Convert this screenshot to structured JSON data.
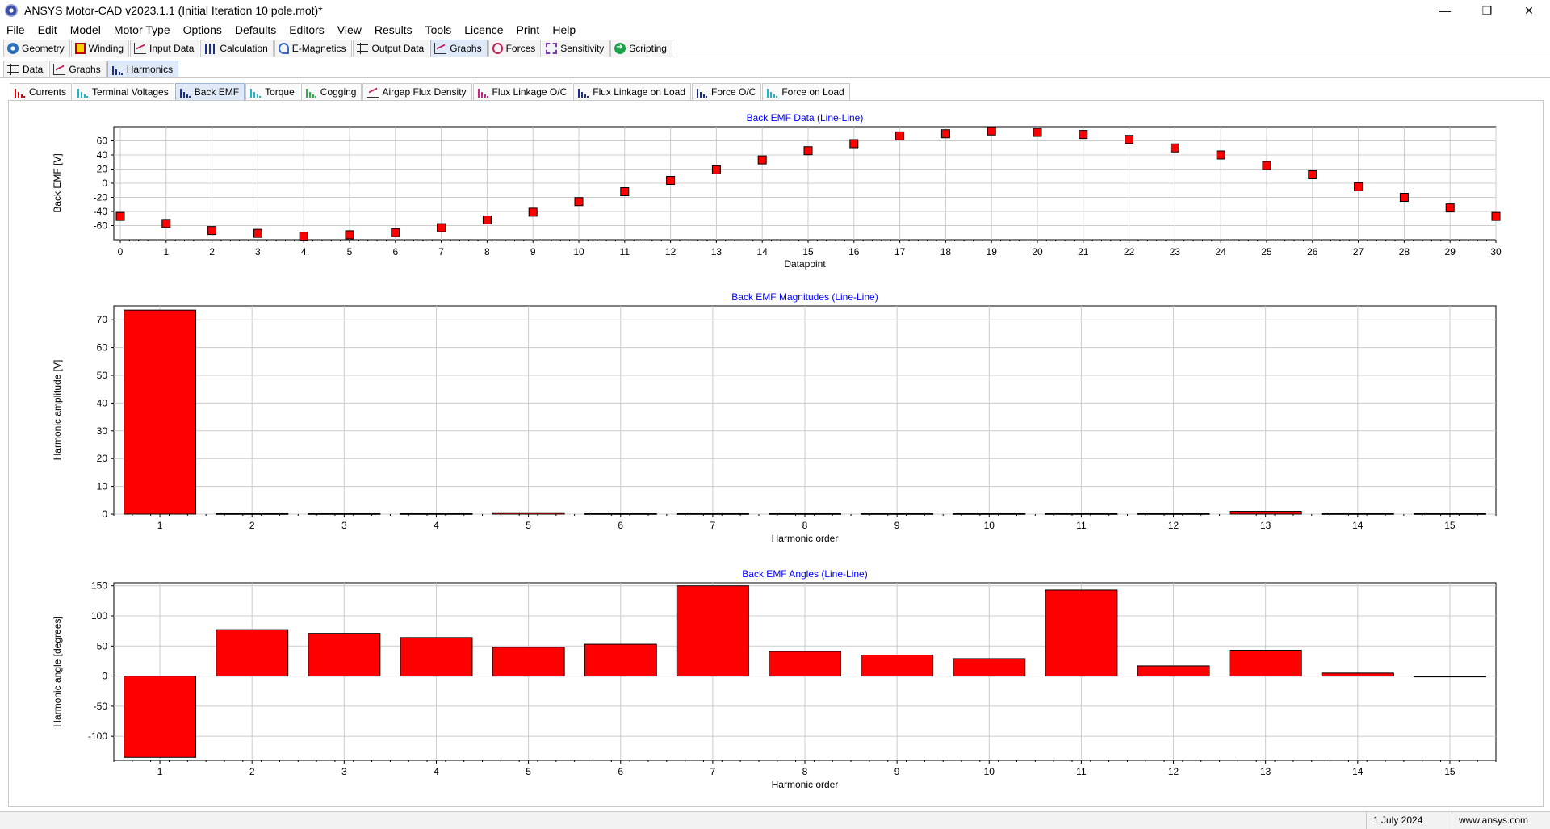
{
  "window": {
    "title": "ANSYS Motor-CAD v2023.1.1 (Initial Iteration 10 pole.mot)*",
    "minimize": "—",
    "restore": "❐",
    "close": "✕"
  },
  "menu": [
    "File",
    "Edit",
    "Model",
    "Motor Type",
    "Options",
    "Defaults",
    "Editors",
    "View",
    "Results",
    "Tools",
    "Licence",
    "Print",
    "Help"
  ],
  "main_tabs": [
    {
      "label": "Geometry",
      "icon": "circle-icon"
    },
    {
      "label": "Winding",
      "icon": "winding-icon"
    },
    {
      "label": "Input Data",
      "icon": "input-data-icon"
    },
    {
      "label": "Calculation",
      "icon": "calculation-icon"
    },
    {
      "label": "E-Magnetics",
      "icon": "magnet-icon"
    },
    {
      "label": "Output Data",
      "icon": "grid-icon"
    },
    {
      "label": "Graphs",
      "icon": "line-chart-icon",
      "active": true
    },
    {
      "label": "Forces",
      "icon": "forces-icon"
    },
    {
      "label": "Sensitivity",
      "icon": "sensitivity-icon"
    },
    {
      "label": "Scripting",
      "icon": "scripting-icon"
    }
  ],
  "sub_tabs": [
    {
      "label": "Data",
      "icon": "grid-icon"
    },
    {
      "label": "Graphs",
      "icon": "line-chart-icon"
    },
    {
      "label": "Harmonics",
      "icon": "bar-chart-icon",
      "active": true
    }
  ],
  "harmonic_tabs": [
    {
      "label": "Currents",
      "color": "red"
    },
    {
      "label": "Terminal Voltages",
      "color": "cyan"
    },
    {
      "label": "Back EMF",
      "color": "navy",
      "active": true
    },
    {
      "label": "Torque",
      "color": "cyan"
    },
    {
      "label": "Cogging",
      "color": "green"
    },
    {
      "label": "Airgap Flux Density",
      "color": "line"
    },
    {
      "label": "Flux Linkage O/C",
      "color": "pink"
    },
    {
      "label": "Flux Linkage on Load",
      "color": "navy"
    },
    {
      "label": "Force O/C",
      "color": "navy"
    },
    {
      "label": "Force on Load",
      "color": "cyan"
    }
  ],
  "colors": {
    "marker": "#ff0000",
    "bar": "#ff0000",
    "title": "#0000ff",
    "grid": "#cccccc"
  },
  "chart_data": [
    {
      "type": "scatter",
      "title": "Back EMF Data (Line-Line)",
      "xlabel": "Datapoint",
      "ylabel": "Back EMF [V]",
      "x": [
        0,
        1,
        2,
        3,
        4,
        5,
        6,
        7,
        8,
        9,
        10,
        11,
        12,
        13,
        14,
        15,
        16,
        17,
        18,
        19,
        20,
        21,
        22,
        23,
        24,
        25,
        26,
        27,
        28,
        29,
        30
      ],
      "y": [
        -47,
        -57,
        -67,
        -71,
        -75,
        -73,
        -70,
        -63,
        -52,
        -41,
        -26,
        -12,
        4,
        19,
        33,
        46,
        56,
        67,
        70,
        74,
        72,
        69,
        62,
        50,
        40,
        25,
        12,
        -5,
        -20,
        -35,
        -47
      ],
      "xlim": [
        0,
        30
      ],
      "ylim": [
        -80,
        80
      ],
      "yticks": [
        60,
        40,
        20,
        0,
        -20,
        -40,
        -60
      ],
      "grid": true
    },
    {
      "type": "bar",
      "title": "Back EMF Magnitudes (Line-Line)",
      "xlabel": "Harmonic order",
      "ylabel": "Harmonic amplitude [V]",
      "categories": [
        "1",
        "2",
        "3",
        "4",
        "5",
        "6",
        "7",
        "8",
        "9",
        "10",
        "11",
        "12",
        "13",
        "14",
        "15"
      ],
      "values": [
        73.5,
        0.2,
        0.2,
        0.2,
        0.5,
        0.2,
        0.2,
        0.2,
        0.2,
        0.2,
        0.2,
        0.2,
        1.0,
        0.2,
        0.2
      ],
      "ylim": [
        0,
        75
      ],
      "yticks": [
        70,
        60,
        50,
        40,
        30,
        20,
        10,
        0
      ],
      "grid": true
    },
    {
      "type": "bar",
      "title": "Back EMF Angles (Line-Line)",
      "xlabel": "Harmonic order",
      "ylabel": "Harmonic angle [degrees]",
      "categories": [
        "1",
        "2",
        "3",
        "4",
        "5",
        "6",
        "7",
        "8",
        "9",
        "10",
        "11",
        "12",
        "13",
        "14",
        "15"
      ],
      "values": [
        -135,
        77,
        71,
        64,
        48,
        53,
        150,
        41,
        35,
        29,
        143,
        17,
        43,
        5,
        0
      ],
      "ylim": [
        -140,
        155
      ],
      "yticks": [
        150,
        100,
        50,
        0,
        -50,
        -100
      ],
      "grid": true
    }
  ],
  "status": {
    "date": "1 July 2024",
    "website": "www.ansys.com"
  }
}
